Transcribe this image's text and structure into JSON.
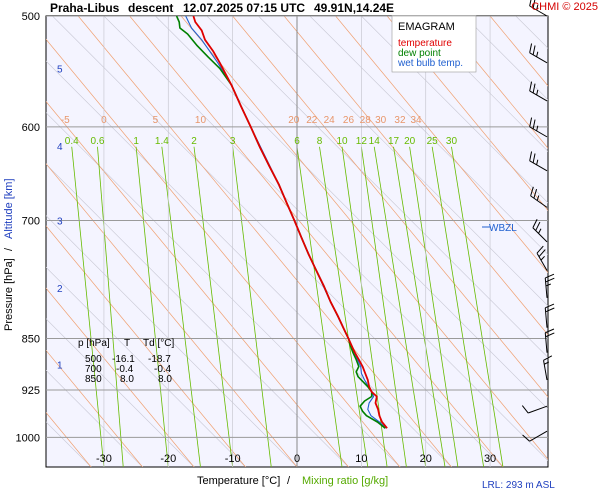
{
  "header": {
    "station": "Praha-Libus",
    "mode": "descent",
    "datetime": "12.07.2025 07:15 UTC",
    "coords": "49.91N,14.24E",
    "copyright": "CHMI © 2025"
  },
  "legend": {
    "title": "EMAGRAM",
    "items": [
      {
        "label": "temperature",
        "color": "#e00000"
      },
      {
        "label": "dew point",
        "color": "#008000"
      },
      {
        "label": "wet bulb temp.",
        "color": "#2060d0"
      }
    ]
  },
  "axes": {
    "ylabel_pressure": "Pressure [hPa]",
    "ylabel_sep": "/",
    "ylabel_altitude": "Altitude [km]",
    "xlabel_temp": "Temperature [°C]",
    "xlabel_sep": "/",
    "xlabel_mix": "Mixing ratio [g/kg]",
    "lrl": "LRL: 293 m ASL",
    "wbzl": "WBZL"
  },
  "table": {
    "headers": [
      "p [hPa]",
      "T",
      "Td [°C]"
    ],
    "rows": [
      [
        "500",
        "-16.1",
        "-18.7"
      ],
      [
        "700",
        "-0.4",
        "-0.4"
      ],
      [
        "850",
        "8.0",
        "8.0"
      ]
    ]
  },
  "colors": {
    "temperature": "#e00000",
    "dewpoint": "#008000",
    "wetbulb": "#2060d0",
    "background": "#f4f4ff",
    "mixing": "#66bb00",
    "dry_adiabat": "#f0a070",
    "moist_adiabat": "#c8c8d4"
  },
  "chart_data": {
    "type": "line",
    "xlim": [
      -39,
      39
    ],
    "ylim_hpa": [
      1050,
      500
    ],
    "x_ticks": [
      -30,
      -20,
      -10,
      0,
      10,
      20,
      30
    ],
    "pressure_ticks": [
      500,
      600,
      700,
      850,
      925,
      1000
    ],
    "altitude_ticks_km": [
      1,
      2,
      3,
      4,
      5
    ],
    "altitude_tick_hpa": [
      887,
      782,
      700,
      619,
      545
    ],
    "dry_adiabat_labels": [
      {
        "label": "-5",
        "temp": -36
      },
      {
        "label": "0",
        "temp": -30
      },
      {
        "label": "5",
        "temp": -22
      },
      {
        "label": "10",
        "temp": -15
      },
      {
        "label": "20",
        "temp": -0.5
      },
      {
        "label": "22",
        "temp": 2.3
      },
      {
        "label": "24",
        "temp": 5
      },
      {
        "label": "26",
        "temp": 8
      },
      {
        "label": "28",
        "temp": 10.6
      },
      {
        "label": "30",
        "temp": 13
      },
      {
        "label": "32",
        "temp": 16
      },
      {
        "label": "34",
        "temp": 18.5
      }
    ],
    "mixing_ratio_labels": [
      "0.4",
      "0.6",
      "1",
      "1.4",
      "2",
      "3",
      "6",
      "8",
      "10",
      "12",
      "14",
      "17",
      "20",
      "25",
      "30"
    ],
    "mixing_ratio_lines": [
      {
        "label": "0.4",
        "top": -35,
        "bottom": -30
      },
      {
        "label": "0.6",
        "top": -31,
        "bottom": -27
      },
      {
        "label": "1",
        "top": -25,
        "bottom": -20
      },
      {
        "label": "1.4",
        "top": -21,
        "bottom": -15
      },
      {
        "label": "2",
        "top": -16,
        "bottom": -10
      },
      {
        "label": "3",
        "top": -10,
        "bottom": -4
      },
      {
        "label": "6",
        "top": 0,
        "bottom": 7
      },
      {
        "label": "8",
        "top": 3.5,
        "bottom": 11
      },
      {
        "label": "10",
        "top": 7,
        "bottom": 14
      },
      {
        "label": "12",
        "top": 10,
        "bottom": 17
      },
      {
        "label": "14",
        "top": 12,
        "bottom": 20
      },
      {
        "label": "17",
        "top": 15,
        "bottom": 23
      },
      {
        "label": "20",
        "top": 17.5,
        "bottom": 25
      },
      {
        "label": "25",
        "top": 21,
        "bottom": 29
      },
      {
        "label": "30",
        "top": 24,
        "bottom": 32
      }
    ],
    "series": [
      {
        "name": "temperature",
        "points": [
          [
            985,
            14.0
          ],
          [
            975,
            13.2
          ],
          [
            965,
            12.8
          ],
          [
            955,
            12.6
          ],
          [
            945,
            12.2
          ],
          [
            935,
            12.4
          ],
          [
            928,
            11.6
          ],
          [
            920,
            11.2
          ],
          [
            910,
            11.0
          ],
          [
            900,
            10.6
          ],
          [
            890,
            10.2
          ],
          [
            880,
            9.6
          ],
          [
            870,
            9.0
          ],
          [
            860,
            8.5
          ],
          [
            850,
            8.0
          ],
          [
            835,
            7.2
          ],
          [
            820,
            6.4
          ],
          [
            800,
            5.2
          ],
          [
            780,
            4.2
          ],
          [
            760,
            3.0
          ],
          [
            740,
            1.8
          ],
          [
            720,
            0.7
          ],
          [
            700,
            -0.4
          ],
          [
            680,
            -1.6
          ],
          [
            660,
            -2.8
          ],
          [
            640,
            -4.3
          ],
          [
            620,
            -5.8
          ],
          [
            600,
            -7.2
          ],
          [
            580,
            -8.7
          ],
          [
            560,
            -10.2
          ],
          [
            540,
            -12.0
          ],
          [
            530,
            -13.0
          ],
          [
            520,
            -14.3
          ],
          [
            512,
            -14.8
          ],
          [
            505,
            -15.8
          ],
          [
            500,
            -16.1
          ]
        ]
      },
      {
        "name": "dew point",
        "points": [
          [
            985,
            13.7
          ],
          [
            975,
            12.5
          ],
          [
            965,
            10.8
          ],
          [
            958,
            10.2
          ],
          [
            950,
            9.8
          ],
          [
            942,
            10.5
          ],
          [
            935,
            11.6
          ],
          [
            928,
            11.6
          ],
          [
            920,
            11.0
          ],
          [
            912,
            10.2
          ],
          [
            905,
            9.5
          ],
          [
            898,
            9.2
          ],
          [
            890,
            9.6
          ],
          [
            880,
            9.2
          ],
          [
            870,
            8.7
          ],
          [
            860,
            8.3
          ],
          [
            850,
            8.0
          ],
          [
            835,
            7.2
          ],
          [
            820,
            6.4
          ],
          [
            800,
            5.2
          ],
          [
            780,
            4.2
          ],
          [
            760,
            3.0
          ],
          [
            740,
            1.8
          ],
          [
            720,
            0.7
          ],
          [
            700,
            -0.4
          ],
          [
            680,
            -1.6
          ],
          [
            660,
            -2.8
          ],
          [
            640,
            -4.3
          ],
          [
            620,
            -5.8
          ],
          [
            600,
            -7.2
          ],
          [
            580,
            -8.7
          ],
          [
            560,
            -10.2
          ],
          [
            545,
            -12.0
          ],
          [
            535,
            -13.8
          ],
          [
            525,
            -15.5
          ],
          [
            515,
            -17.0
          ],
          [
            510,
            -18.2
          ],
          [
            505,
            -18.3
          ],
          [
            500,
            -18.7
          ]
        ]
      },
      {
        "name": "wet bulb temp.",
        "points": [
          [
            985,
            13.8
          ],
          [
            975,
            12.8
          ],
          [
            965,
            11.5
          ],
          [
            955,
            11.0
          ],
          [
            945,
            11.2
          ],
          [
            935,
            11.9
          ],
          [
            928,
            11.6
          ],
          [
            920,
            11.1
          ],
          [
            910,
            10.5
          ],
          [
            900,
            10.0
          ],
          [
            890,
            9.9
          ],
          [
            880,
            9.4
          ],
          [
            870,
            8.9
          ],
          [
            860,
            8.4
          ],
          [
            850,
            8.0
          ],
          [
            800,
            5.2
          ],
          [
            750,
            2.4
          ],
          [
            700,
            -0.4
          ],
          [
            650,
            -3.5
          ],
          [
            600,
            -7.2
          ],
          [
            560,
            -10.2
          ],
          [
            540,
            -12.3
          ],
          [
            520,
            -14.8
          ],
          [
            510,
            -16.4
          ],
          [
            500,
            -17.3
          ]
        ]
      }
    ],
    "wind_barbs": [
      {
        "p": 500,
        "dir": 300,
        "speed_kt": 25
      },
      {
        "p": 540,
        "dir": 300,
        "speed_kt": 25
      },
      {
        "p": 575,
        "dir": 300,
        "speed_kt": 25
      },
      {
        "p": 610,
        "dir": 300,
        "speed_kt": 25
      },
      {
        "p": 645,
        "dir": 300,
        "speed_kt": 25
      },
      {
        "p": 685,
        "dir": 305,
        "speed_kt": 25
      },
      {
        "p": 725,
        "dir": 315,
        "speed_kt": 25
      },
      {
        "p": 760,
        "dir": 330,
        "speed_kt": 25
      },
      {
        "p": 795,
        "dir": 355,
        "speed_kt": 25
      },
      {
        "p": 835,
        "dir": 355,
        "speed_kt": 20
      },
      {
        "p": 870,
        "dir": 355,
        "speed_kt": 20
      },
      {
        "p": 910,
        "dir": 350,
        "speed_kt": 15
      },
      {
        "p": 950,
        "dir": 250,
        "speed_kt": 10
      },
      {
        "p": 990,
        "dir": 240,
        "speed_kt": 10
      }
    ]
  }
}
